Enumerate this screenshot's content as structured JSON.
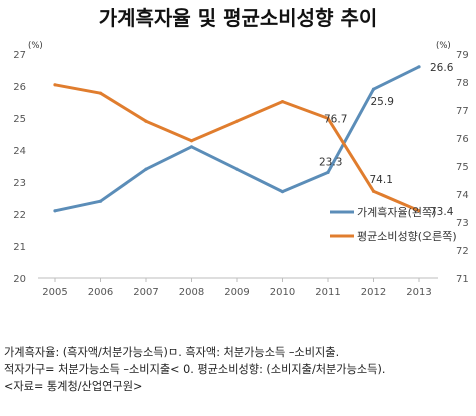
{
  "title": "가계흑자율 및 평균소비성향 추이",
  "chart_data": {
    "type": "line",
    "x": [
      "2005",
      "2006",
      "2007",
      "2008",
      "2009",
      "2010",
      "2011",
      "2012",
      "2013"
    ],
    "series": [
      {
        "name": "가계흑자율(왼쪽)",
        "axis": "left",
        "color": "#5B8DB8",
        "values": [
          22.1,
          22.4,
          23.4,
          24.1,
          23.4,
          22.7,
          23.3,
          25.9,
          26.6
        ],
        "labels": [
          null,
          null,
          null,
          null,
          null,
          null,
          "23.3",
          "25.9",
          "26.6"
        ]
      },
      {
        "name": "평균소비성향(오른쪽)",
        "axis": "right",
        "color": "#E07D2E",
        "values": [
          77.9,
          77.6,
          76.6,
          75.9,
          76.6,
          77.3,
          76.7,
          74.1,
          73.4
        ],
        "labels": [
          null,
          null,
          null,
          null,
          null,
          null,
          "76.7",
          "74.1",
          "73.4"
        ]
      }
    ],
    "y_left": {
      "unit": "(%)",
      "min": 20,
      "max": 27,
      "ticks": [
        20,
        21,
        22,
        23,
        24,
        25,
        26,
        27
      ]
    },
    "y_right": {
      "unit": "(%)",
      "min": 71,
      "max": 79,
      "ticks": [
        71,
        72,
        73,
        74,
        75,
        76,
        77,
        78,
        79
      ]
    },
    "grid": false,
    "legend_position": "right-middle"
  },
  "notes": [
    "가계흑자율: (흑자액/처분가능소득)ㅁ. 흑자액: 처분가능소득 –소비지출.",
    "적자가구= 처분가능소득 –소비지출< 0. 평균소비성향: (소비지출/처분가능소득).",
    "<자료= 통계청/산업연구원>"
  ]
}
